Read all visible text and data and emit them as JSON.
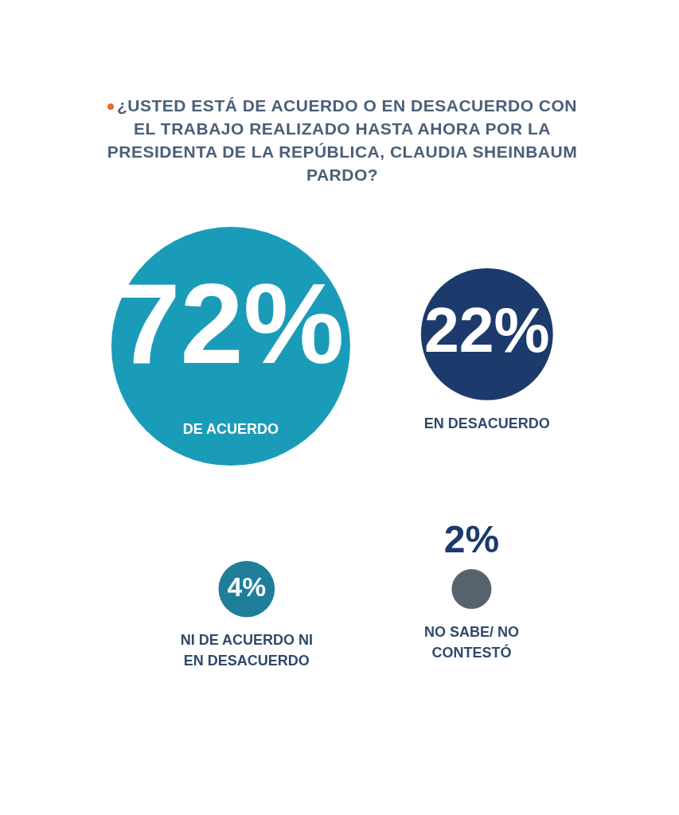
{
  "chart_data": {
    "type": "other",
    "title": "¿USTED ESTÁ DE ACUERDO O EN DESACUERDO CON EL TRABAJO REALIZADO HASTA AHORA POR LA PRESIDENTA DE LA REPÚBLICA, CLAUDIA SHEINBAUM PARDO?",
    "categories": [
      "DE ACUERDO",
      "EN DESACUERDO",
      "NI DE ACUERDO NI EN DESACUERDO",
      "NO SABE/ NO CONTESTÓ"
    ],
    "values": [
      72,
      22,
      4,
      2
    ],
    "value_labels": [
      "72%",
      "22%",
      "4%",
      "2%"
    ],
    "colors": [
      "#1a9cb8",
      "#1c3a6b",
      "#1f7f9a",
      "#56636e"
    ],
    "legend": false
  }
}
